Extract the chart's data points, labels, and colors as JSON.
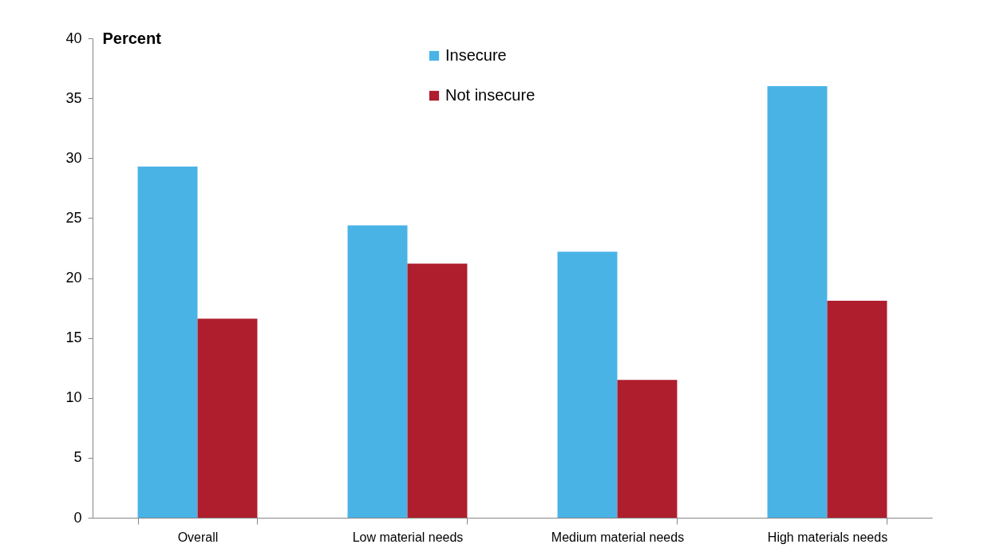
{
  "chart_data": {
    "type": "bar",
    "ylabel": "Percent",
    "categories": [
      "Overall",
      "Low material needs",
      "Medium material needs",
      "High materials needs"
    ],
    "series": [
      {
        "name": "Insecure",
        "color": "#4ab3e6",
        "values": [
          29.3,
          24.4,
          22.2,
          36.0
        ]
      },
      {
        "name": "Not insecure",
        "color": "#ae1e2d",
        "values": [
          16.6,
          21.2,
          11.5,
          18.1
        ]
      }
    ],
    "ylim": [
      0,
      40
    ],
    "yticks": [
      0,
      5,
      10,
      15,
      20,
      25,
      30,
      35,
      40
    ],
    "grid": false,
    "legend": "top"
  }
}
